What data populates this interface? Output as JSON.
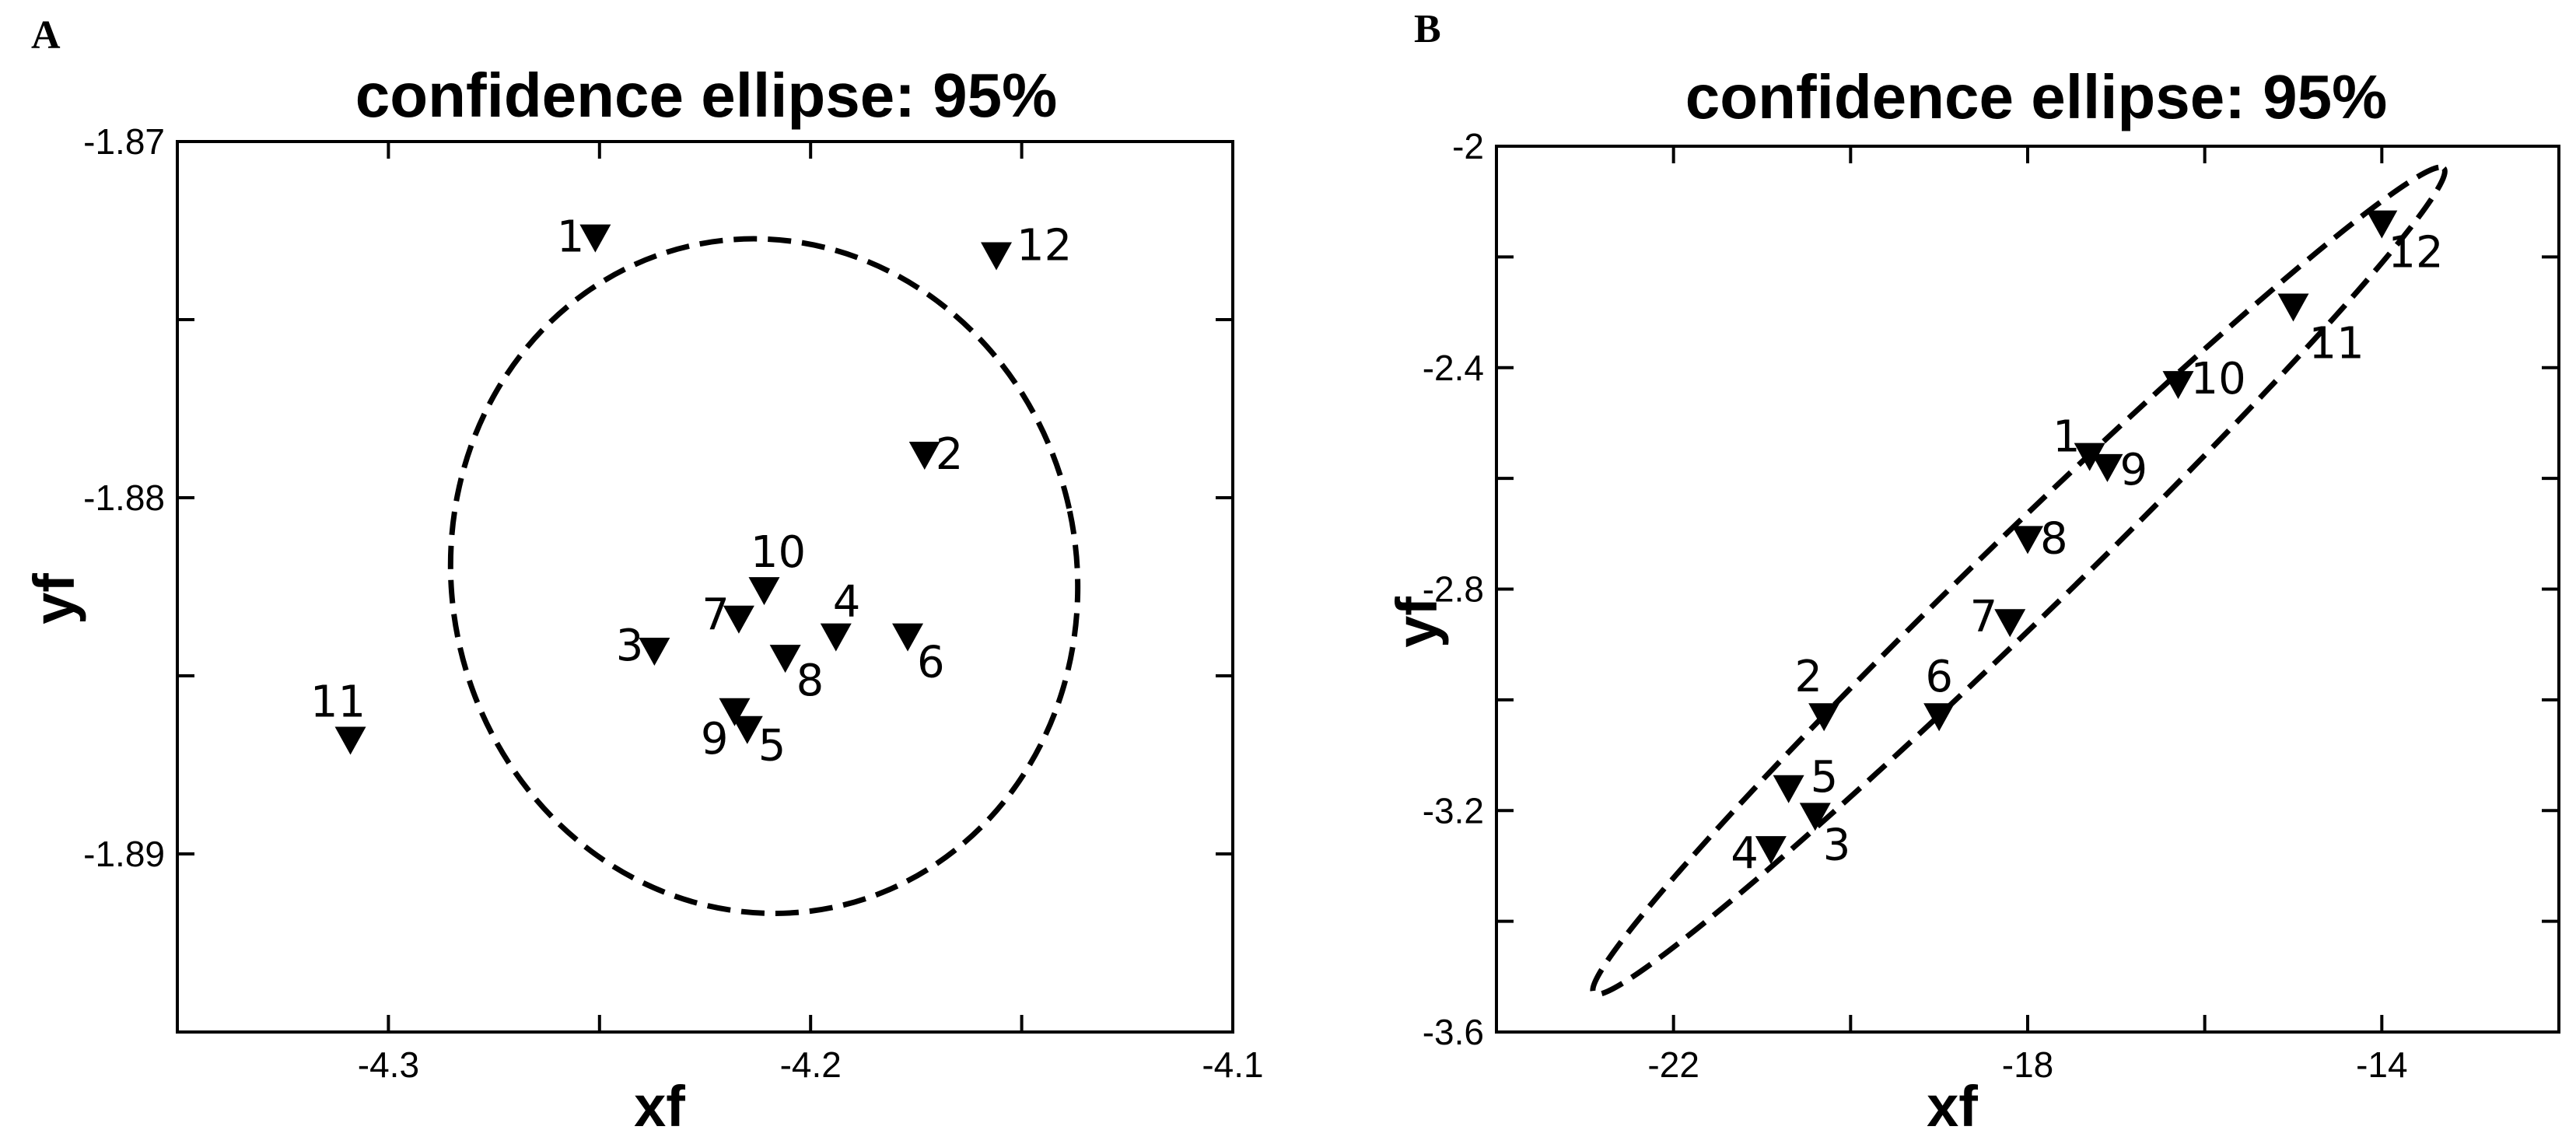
{
  "chart_data": [
    {
      "panel_letter": "A",
      "type": "scatter",
      "title": "confidence ellipse: 95%",
      "xlabel": "xf",
      "ylabel": "yf",
      "xlim": [
        -4.35,
        -4.1
      ],
      "ylim": [
        -1.895,
        -1.87
      ],
      "x_ticks": [
        -4.3,
        -4.2,
        -4.1
      ],
      "x_tick_labels": [
        "-4.3",
        "-4.2",
        "-4.1"
      ],
      "y_ticks": [
        -1.87,
        -1.88,
        -1.89
      ],
      "y_tick_labels": [
        "-1.87",
        "-1.88",
        "-1.89"
      ],
      "minor_x_ticks": [
        -4.25,
        -4.15
      ],
      "minor_y_ticks": [
        -1.875,
        -1.885
      ],
      "marker": "triangle-down",
      "points": [
        {
          "label": "1",
          "x": -4.251,
          "y": -1.8727,
          "lx": -14,
          "ly": 0,
          "anchor": "end"
        },
        {
          "label": "2",
          "x": -4.173,
          "y": -1.8788,
          "lx": 14,
          "ly": 0,
          "anchor": "start"
        },
        {
          "label": "3",
          "x": -4.237,
          "y": -1.8843,
          "lx": -14,
          "ly": -6,
          "anchor": "end"
        },
        {
          "label": "4",
          "x": -4.194,
          "y": -1.8839,
          "lx": -4,
          "ly": -44,
          "anchor": "start"
        },
        {
          "label": "5",
          "x": -4.215,
          "y": -1.8865,
          "lx": 14,
          "ly": 22,
          "anchor": "start"
        },
        {
          "label": "6",
          "x": -4.177,
          "y": -1.8839,
          "lx": 12,
          "ly": 34,
          "anchor": "start"
        },
        {
          "label": "7",
          "x": -4.217,
          "y": -1.8834,
          "lx": -12,
          "ly": -4,
          "anchor": "end"
        },
        {
          "label": "8",
          "x": -4.206,
          "y": -1.8845,
          "lx": 14,
          "ly": 30,
          "anchor": "start"
        },
        {
          "label": "9",
          "x": -4.218,
          "y": -1.886,
          "lx": -8,
          "ly": 36,
          "anchor": "end"
        },
        {
          "label": "10",
          "x": -4.211,
          "y": -1.8826,
          "lx": 18,
          "ly": -48,
          "anchor": "middle"
        },
        {
          "label": "11",
          "x": -4.309,
          "y": -1.8868,
          "lx": -16,
          "ly": -48,
          "anchor": "middle"
        },
        {
          "label": "12",
          "x": -4.156,
          "y": -1.8732,
          "lx": 26,
          "ly": -12,
          "anchor": "start"
        }
      ],
      "ellipse": {
        "cx": -4.211,
        "cy": -1.8822,
        "rx": 0.074,
        "ry": 0.0095,
        "angle_deg": 0,
        "confidence": "95%"
      }
    },
    {
      "panel_letter": "B",
      "type": "scatter",
      "title": "confidence ellipse: 95%",
      "xlabel": "xf",
      "ylabel": "yf",
      "xlim": [
        -24,
        -12
      ],
      "ylim": [
        -3.6,
        -2.0
      ],
      "x_ticks": [
        -22,
        -18,
        -14
      ],
      "x_tick_labels": [
        "-22",
        "-18",
        "-14"
      ],
      "y_ticks": [
        -2.0,
        -2.4,
        -2.8,
        -3.2,
        -3.6
      ],
      "y_tick_labels": [
        "-2",
        "-2.4",
        "-2.8",
        "-3.2",
        "-3.6"
      ],
      "minor_x_ticks": [
        -20,
        -16
      ],
      "minor_y_ticks": [
        -2.2,
        -2.6,
        -3.0,
        -3.4
      ],
      "marker": "triangle-down",
      "points": [
        {
          "label": "1",
          "x": -17.3,
          "y": -2.56,
          "lx": -12,
          "ly": -24,
          "anchor": "end"
        },
        {
          "label": "2",
          "x": -20.3,
          "y": -3.03,
          "lx": -20,
          "ly": -50,
          "anchor": "middle"
        },
        {
          "label": "3",
          "x": -20.4,
          "y": -3.21,
          "lx": 10,
          "ly": 38,
          "anchor": "start"
        },
        {
          "label": "4",
          "x": -20.9,
          "y": -3.27,
          "lx": -16,
          "ly": 6,
          "anchor": "end"
        },
        {
          "label": "5",
          "x": -20.7,
          "y": -3.16,
          "lx": 28,
          "ly": -14,
          "anchor": "start"
        },
        {
          "label": "6",
          "x": -19.0,
          "y": -3.03,
          "lx": 0,
          "ly": -50,
          "anchor": "middle"
        },
        {
          "label": "7",
          "x": -18.2,
          "y": -2.86,
          "lx": -16,
          "ly": -6,
          "anchor": "end"
        },
        {
          "label": "8",
          "x": -18.0,
          "y": -2.71,
          "lx": 16,
          "ly": 0,
          "anchor": "start"
        },
        {
          "label": "9",
          "x": -17.1,
          "y": -2.58,
          "lx": 16,
          "ly": 4,
          "anchor": "start"
        },
        {
          "label": "10",
          "x": -16.3,
          "y": -2.43,
          "lx": 16,
          "ly": -6,
          "anchor": "start"
        },
        {
          "label": "11",
          "x": -15.0,
          "y": -2.29,
          "lx": 20,
          "ly": 48,
          "anchor": "start"
        },
        {
          "label": "12",
          "x": -14.0,
          "y": -2.14,
          "lx": 8,
          "ly": 38,
          "anchor": "start"
        }
      ],
      "ellipse": {
        "x1": -22.9,
        "y1": -3.53,
        "x2": -13.3,
        "y2": -2.04,
        "minor_halfwidth": 0.048,
        "confidence": "95%"
      }
    }
  ]
}
